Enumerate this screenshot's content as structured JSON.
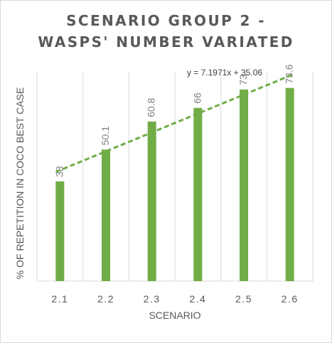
{
  "chart_data": {
    "type": "bar",
    "title_lines": [
      "SCENARIO GROUP 2 -",
      "WASPS' NUMBER VARIATED"
    ],
    "xlabel": "SCENARIO",
    "ylabel": "% OF REPETITION IN COCO BEST CASE",
    "categories": [
      "2.1",
      "2.2",
      "2.3",
      "2.4",
      "2.5",
      "2.6"
    ],
    "values": [
      38,
      50.1,
      60.8,
      66,
      73,
      73.6
    ],
    "data_labels": [
      "38",
      "50.1",
      "60.8",
      "66",
      "73",
      "73.6"
    ],
    "ylim": [
      0,
      80
    ],
    "bar_color": "#70ad47",
    "grid": "vertical",
    "trendline": {
      "type": "linear",
      "slope": 7.1971,
      "intercept": 35.06,
      "equation": "y = 7.1971x + 35.06",
      "color": "#70ad47",
      "style": "dashed"
    }
  }
}
